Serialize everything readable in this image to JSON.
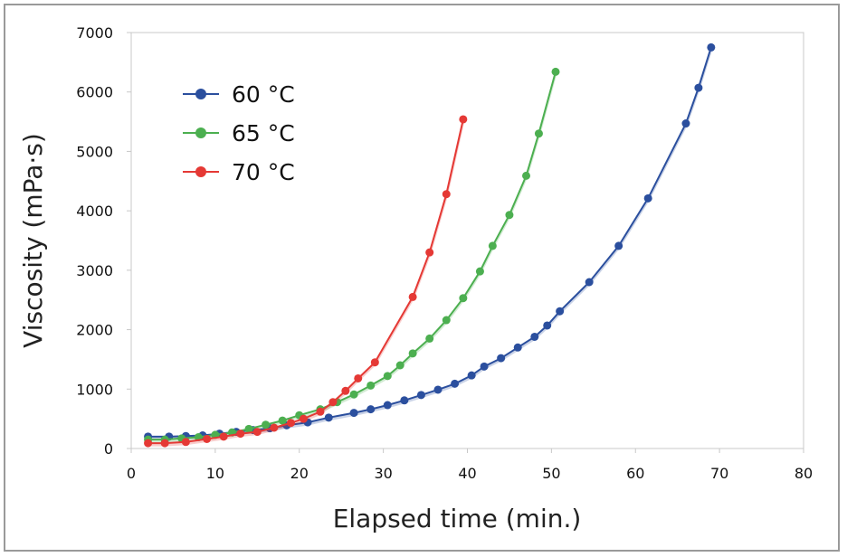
{
  "chart_data": {
    "type": "line",
    "title": "",
    "xlabel": "Elapsed time (min.)",
    "ylabel": "Viscosity (mPa·s)",
    "xlim": [
      0,
      80
    ],
    "ylim": [
      0,
      7000
    ],
    "x_ticks": [
      0,
      10,
      20,
      30,
      40,
      50,
      60,
      70,
      80
    ],
    "y_ticks": [
      0,
      1000,
      2000,
      3000,
      4000,
      5000,
      6000,
      7000
    ],
    "grid": false,
    "legend_position": "top-left",
    "series": [
      {
        "name": "60 °C",
        "color": "#2b4f9e",
        "points": [
          [
            2,
            200
          ],
          [
            4.5,
            200
          ],
          [
            6.5,
            210
          ],
          [
            8.5,
            220
          ],
          [
            10.5,
            250
          ],
          [
            12.5,
            280
          ],
          [
            14.5,
            310
          ],
          [
            16.5,
            340
          ],
          [
            18.5,
            390
          ],
          [
            21,
            440
          ],
          [
            23.5,
            520
          ],
          [
            26.5,
            600
          ],
          [
            28.5,
            660
          ],
          [
            30.5,
            730
          ],
          [
            32.5,
            810
          ],
          [
            34.5,
            900
          ],
          [
            36.5,
            990
          ],
          [
            38.5,
            1090
          ],
          [
            40.5,
            1230
          ],
          [
            42,
            1380
          ],
          [
            44,
            1520
          ],
          [
            46,
            1700
          ],
          [
            48,
            1880
          ],
          [
            49.5,
            2070
          ],
          [
            51,
            2310
          ],
          [
            54.5,
            2800
          ],
          [
            58,
            3410
          ],
          [
            61.5,
            4210
          ],
          [
            66,
            5470
          ],
          [
            67.5,
            6070
          ],
          [
            69,
            6750
          ]
        ]
      },
      {
        "name": "65 °C",
        "color": "#4caf50",
        "points": [
          [
            2,
            150
          ],
          [
            4,
            150
          ],
          [
            6,
            170
          ],
          [
            8,
            190
          ],
          [
            10,
            230
          ],
          [
            12,
            270
          ],
          [
            14,
            330
          ],
          [
            16,
            400
          ],
          [
            18,
            470
          ],
          [
            20,
            560
          ],
          [
            22.5,
            660
          ],
          [
            24.5,
            780
          ],
          [
            26.5,
            910
          ],
          [
            28.5,
            1060
          ],
          [
            30.5,
            1220
          ],
          [
            32,
            1400
          ],
          [
            33.5,
            1600
          ],
          [
            35.5,
            1850
          ],
          [
            37.5,
            2160
          ],
          [
            39.5,
            2530
          ],
          [
            41.5,
            2980
          ],
          [
            43,
            3410
          ],
          [
            45,
            3930
          ],
          [
            47,
            4590
          ],
          [
            48.5,
            5300
          ],
          [
            50.5,
            6340
          ]
        ]
      },
      {
        "name": "70 °C",
        "color": "#e53935",
        "points": [
          [
            2,
            90
          ],
          [
            4,
            90
          ],
          [
            6.5,
            110
          ],
          [
            9,
            160
          ],
          [
            11,
            200
          ],
          [
            13,
            250
          ],
          [
            15,
            280
          ],
          [
            17,
            350
          ],
          [
            19,
            430
          ],
          [
            20.5,
            500
          ],
          [
            22.5,
            620
          ],
          [
            24,
            780
          ],
          [
            25.5,
            970
          ],
          [
            27,
            1180
          ],
          [
            29,
            1450
          ],
          [
            33.5,
            2550
          ],
          [
            35.5,
            3300
          ],
          [
            37.5,
            4280
          ],
          [
            39.5,
            5540
          ]
        ]
      }
    ]
  }
}
